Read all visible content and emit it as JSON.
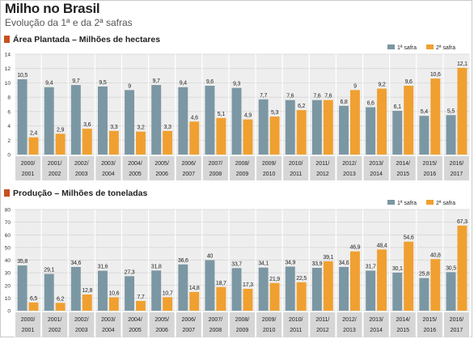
{
  "page": {
    "title": "Milho no Brasil",
    "subtitle": "Evolução da 1ª e da 2ª safras"
  },
  "colors": {
    "first_safra": "#7b97a4",
    "second_safra": "#f0a030",
    "section_marker": "#c8501e",
    "plot_bg": "#eeeeee",
    "category_bar": "#d6d6d6"
  },
  "chart_data": [
    {
      "type": "bar",
      "title": "Área Plantada – Milhões de hectares",
      "categories": [
        [
          "2000/",
          "2001"
        ],
        [
          "2001/",
          "2002"
        ],
        [
          "2002/",
          "2003"
        ],
        [
          "2003/",
          "2004"
        ],
        [
          "2004/",
          "2005"
        ],
        [
          "2005/",
          "2006"
        ],
        [
          "2006/",
          "2007"
        ],
        [
          "2007/",
          "2008"
        ],
        [
          "2008/",
          "2009"
        ],
        [
          "2009/",
          "2010"
        ],
        [
          "2010/",
          "2011"
        ],
        [
          "2011/",
          "2012"
        ],
        [
          "2012/",
          "2013"
        ],
        [
          "2013/",
          "2014"
        ],
        [
          "2014/",
          "2015"
        ],
        [
          "2015/",
          "2016"
        ],
        [
          "2016/",
          "2017"
        ]
      ],
      "series": [
        {
          "name": "1ª safra",
          "color": "#7b97a4",
          "values": [
            10.5,
            9.4,
            9.7,
            9.5,
            9,
            9.7,
            9.4,
            9.6,
            9.3,
            7.7,
            7.6,
            7.6,
            6.8,
            6.6,
            6.1,
            5.4,
            5.5
          ],
          "labels": [
            "10,5",
            "9,4",
            "9,7",
            "9,5",
            "9",
            "9,7",
            "9,4",
            "9,6",
            "9,3",
            "7,7",
            "7,6",
            "7,6",
            "6,8",
            "6,6",
            "6,1",
            "5,4",
            "5,5"
          ]
        },
        {
          "name": "2ª safra",
          "color": "#f0a030",
          "values": [
            2.4,
            2.9,
            3.6,
            3.3,
            3.2,
            3.3,
            4.6,
            5.1,
            4.9,
            5.3,
            6.2,
            7.6,
            9,
            9.2,
            9.6,
            10.6,
            12.1
          ],
          "labels": [
            "2,4",
            "2,9",
            "3,6",
            "3,3",
            "3,2",
            "3,3",
            "4,6",
            "5,1",
            "4,9",
            "5,3",
            "6,2",
            "7,6",
            "9",
            "9,2",
            "9,6",
            "10,6",
            "12,1"
          ]
        }
      ],
      "ylim": [
        0,
        14
      ],
      "yticks": [
        "0",
        "2",
        "4",
        "6",
        "8",
        "10",
        "12",
        "14"
      ],
      "grid": true,
      "legend": "top-right"
    },
    {
      "type": "bar",
      "title": "Produção – Milhões de toneladas",
      "categories": [
        [
          "2000/",
          "2001"
        ],
        [
          "2001/",
          "2002"
        ],
        [
          "2002/",
          "2003"
        ],
        [
          "2003/",
          "2004"
        ],
        [
          "2004/",
          "2005"
        ],
        [
          "2005/",
          "2006"
        ],
        [
          "2006/",
          "2007"
        ],
        [
          "2007/",
          "2008"
        ],
        [
          "2008/",
          "2009"
        ],
        [
          "2009/",
          "2010"
        ],
        [
          "2010/",
          "2011"
        ],
        [
          "2011/",
          "2012"
        ],
        [
          "2012/",
          "2013"
        ],
        [
          "2013/",
          "2014"
        ],
        [
          "2014/",
          "2015"
        ],
        [
          "2015/",
          "2016"
        ],
        [
          "2016/",
          "2017"
        ]
      ],
      "series": [
        {
          "name": "1ª safra",
          "color": "#7b97a4",
          "values": [
            35.8,
            29.1,
            34.6,
            31.6,
            27.3,
            31.8,
            36.6,
            40,
            33.7,
            34.1,
            34.9,
            33.9,
            34.6,
            31.7,
            30.1,
            25.8,
            30.5
          ],
          "labels": [
            "35,8",
            "29,1",
            "34,6",
            "31,6",
            "27,3",
            "31,8",
            "36,6",
            "40",
            "33,7",
            "34,1",
            "34,9",
            "33,9",
            "34,6",
            "31,7",
            "30,1",
            "25,8",
            "30,5"
          ]
        },
        {
          "name": "2ª safra",
          "color": "#f0a030",
          "values": [
            6.5,
            6.2,
            12.8,
            10.6,
            7.7,
            10.7,
            14.8,
            18.7,
            17.3,
            21.9,
            22.5,
            39.1,
            46.9,
            48.4,
            54.6,
            40.8,
            67.3
          ],
          "labels": [
            "6,5",
            "6,2",
            "12,8",
            "10,6",
            "7,7",
            "10,7",
            "14,8",
            "18,7",
            "17,3",
            "21,9",
            "22,5",
            "39,1",
            "46,9",
            "48,4",
            "54,6",
            "40,8",
            "67,3"
          ]
        }
      ],
      "ylim": [
        0,
        80
      ],
      "yticks": [
        "0",
        "10",
        "20",
        "30",
        "40",
        "50",
        "60",
        "70",
        "80"
      ],
      "grid": true,
      "legend": "top-right"
    }
  ]
}
